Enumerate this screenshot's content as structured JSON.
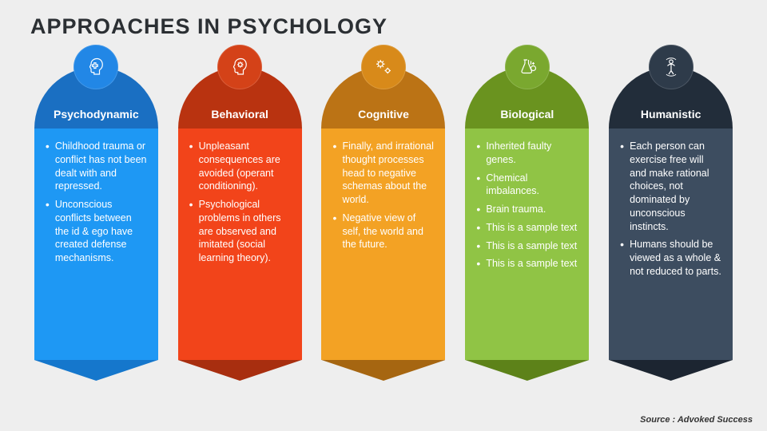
{
  "title": "APPROACHES IN PSYCHOLOGY",
  "source": "Source : Advoked Success",
  "background_color": "#eeeeee",
  "columns": [
    {
      "label": "Psychodynamic",
      "circle_color": "#2287e6",
      "arch_color": "#1a6fc2",
      "body_color": "#1e98f4",
      "tail_color": "#1577cc",
      "icon": "head-puzzle",
      "bullets": [
        "Childhood trauma or conflict has not been dealt with and repressed.",
        "Unconscious conflicts between the id & ego have created defense mechanisms."
      ]
    },
    {
      "label": "Behavioral",
      "circle_color": "#d44218",
      "arch_color": "#b93310",
      "body_color": "#f2441a",
      "tail_color": "#a82e0f",
      "icon": "head-gear",
      "bullets": [
        "Unpleasant consequences are avoided (operant conditioning).",
        "Psychological problems in others are observed and imitated (social learning theory)."
      ]
    },
    {
      "label": "Cognitive",
      "circle_color": "#d88a1a",
      "arch_color": "#bb7315",
      "body_color": "#f3a224",
      "tail_color": "#a66611",
      "icon": "gears",
      "bullets": [
        "Finally, and irrational thought processes head to negative schemas about the world.",
        "Negative view of self, the world and the future."
      ]
    },
    {
      "label": "Biological",
      "circle_color": "#7aa82f",
      "arch_color": "#6a931f",
      "body_color": "#90c445",
      "tail_color": "#5d8219",
      "icon": "flask",
      "bullets": [
        "Inherited faulty genes.",
        "Chemical imbalances.",
        "Brain trauma.",
        "This is a sample text",
        "This is a sample text",
        "This is a sample text"
      ]
    },
    {
      "label": "Humanistic",
      "circle_color": "#2e3b4a",
      "arch_color": "#222d3a",
      "body_color": "#3d4d60",
      "tail_color": "#1c2531",
      "icon": "human",
      "bullets": [
        "Each person can exercise free will and make rational choices, not dominated by unconscious instincts.",
        "Humans should be viewed as a whole & not reduced to parts."
      ]
    }
  ]
}
